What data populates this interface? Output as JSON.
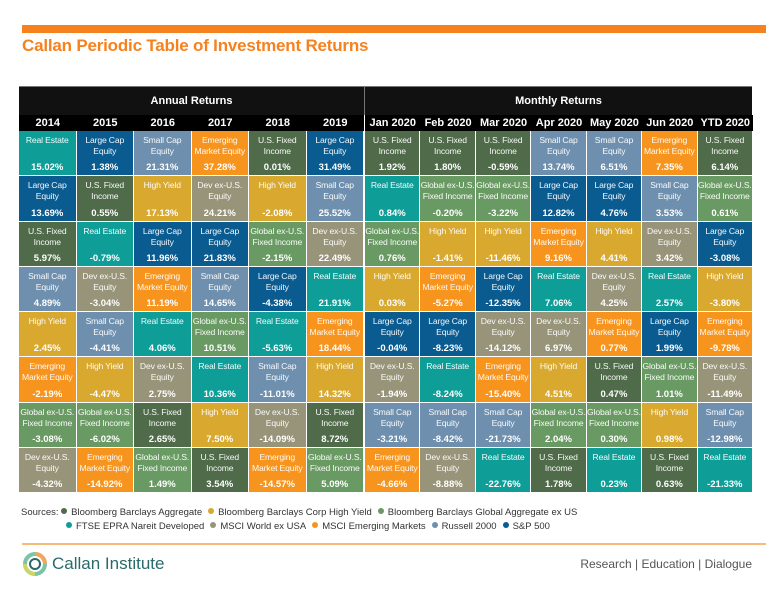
{
  "title": "Callan Periodic Table of Investment Returns",
  "groups": {
    "annual": "Annual Returns",
    "monthly": "Monthly Returns"
  },
  "assets": {
    "USF": {
      "label": "U.S. Fixed\nIncome",
      "color": "#4f6b49"
    },
    "HY": {
      "label": "High Yield",
      "color": "#d9a82f"
    },
    "GF": {
      "label": "Global ex-U.S.\nFixed Income",
      "color": "#6a9a63"
    },
    "RE": {
      "label": "Real Estate",
      "color": "#0f9d98"
    },
    "DEV": {
      "label": "Dev ex-U.S.\nEquity",
      "color": "#979479"
    },
    "EM": {
      "label": "Emerging\nMarket Equity",
      "color": "#f7941e"
    },
    "SC": {
      "label": "Small Cap\nEquity",
      "color": "#6f8fae"
    },
    "LC": {
      "label": "Large Cap\nEquity",
      "color": "#0a5b90"
    }
  },
  "columns": [
    {
      "header": "2014",
      "cells": [
        [
          "RE",
          "15.02%"
        ],
        [
          "LC",
          "13.69%"
        ],
        [
          "USF",
          "5.97%"
        ],
        [
          "SC",
          "4.89%"
        ],
        [
          "HY",
          "2.45%"
        ],
        [
          "EM",
          "-2.19%"
        ],
        [
          "GF",
          "-3.08%"
        ],
        [
          "DEV",
          "-4.32%"
        ]
      ]
    },
    {
      "header": "2015",
      "cells": [
        [
          "LC",
          "1.38%"
        ],
        [
          "USF",
          "0.55%"
        ],
        [
          "RE",
          "-0.79%"
        ],
        [
          "DEV",
          "-3.04%"
        ],
        [
          "SC",
          "-4.41%"
        ],
        [
          "HY",
          "-4.47%"
        ],
        [
          "GF",
          "-6.02%"
        ],
        [
          "EM",
          "-14.92%"
        ]
      ]
    },
    {
      "header": "2016",
      "cells": [
        [
          "SC",
          "21.31%"
        ],
        [
          "HY",
          "17.13%"
        ],
        [
          "LC",
          "11.96%"
        ],
        [
          "EM",
          "11.19%"
        ],
        [
          "RE",
          "4.06%"
        ],
        [
          "DEV",
          "2.75%"
        ],
        [
          "USF",
          "2.65%"
        ],
        [
          "GF",
          "1.49%"
        ]
      ]
    },
    {
      "header": "2017",
      "cells": [
        [
          "EM",
          "37.28%"
        ],
        [
          "DEV",
          "24.21%"
        ],
        [
          "LC",
          "21.83%"
        ],
        [
          "SC",
          "14.65%"
        ],
        [
          "GF",
          "10.51%"
        ],
        [
          "RE",
          "10.36%"
        ],
        [
          "HY",
          "7.50%"
        ],
        [
          "USF",
          "3.54%"
        ]
      ]
    },
    {
      "header": "2018",
      "cells": [
        [
          "USF",
          "0.01%"
        ],
        [
          "HY",
          "-2.08%"
        ],
        [
          "GF",
          "-2.15%"
        ],
        [
          "LC",
          "-4.38%"
        ],
        [
          "RE",
          "-5.63%"
        ],
        [
          "SC",
          "-11.01%"
        ],
        [
          "DEV",
          "-14.09%"
        ],
        [
          "EM",
          "-14.57%"
        ]
      ]
    },
    {
      "header": "2019",
      "cells": [
        [
          "LC",
          "31.49%"
        ],
        [
          "SC",
          "25.52%"
        ],
        [
          "DEV",
          "22.49%"
        ],
        [
          "RE",
          "21.91%"
        ],
        [
          "EM",
          "18.44%"
        ],
        [
          "HY",
          "14.32%"
        ],
        [
          "USF",
          "8.72%"
        ],
        [
          "GF",
          "5.09%"
        ]
      ]
    },
    {
      "header": "Jan 2020",
      "cells": [
        [
          "USF",
          "1.92%"
        ],
        [
          "RE",
          "0.84%"
        ],
        [
          "GF",
          "0.76%"
        ],
        [
          "HY",
          "0.03%"
        ],
        [
          "LC",
          "-0.04%"
        ],
        [
          "DEV",
          "-1.94%"
        ],
        [
          "SC",
          "-3.21%"
        ],
        [
          "EM",
          "-4.66%"
        ]
      ]
    },
    {
      "header": "Feb 2020",
      "cells": [
        [
          "USF",
          "1.80%"
        ],
        [
          "GF",
          "-0.20%"
        ],
        [
          "HY",
          "-1.41%"
        ],
        [
          "EM",
          "-5.27%"
        ],
        [
          "LC",
          "-8.23%"
        ],
        [
          "RE",
          "-8.24%"
        ],
        [
          "SC",
          "-8.42%"
        ],
        [
          "DEV",
          "-8.88%"
        ]
      ]
    },
    {
      "header": "Mar 2020",
      "cells": [
        [
          "USF",
          "-0.59%"
        ],
        [
          "GF",
          "-3.22%"
        ],
        [
          "HY",
          "-11.46%"
        ],
        [
          "LC",
          "-12.35%"
        ],
        [
          "DEV",
          "-14.12%"
        ],
        [
          "EM",
          "-15.40%"
        ],
        [
          "SC",
          "-21.73%"
        ],
        [
          "RE",
          "-22.76%"
        ]
      ]
    },
    {
      "header": "Apr 2020",
      "cells": [
        [
          "SC",
          "13.74%"
        ],
        [
          "LC",
          "12.82%"
        ],
        [
          "EM",
          "9.16%"
        ],
        [
          "RE",
          "7.06%"
        ],
        [
          "DEV",
          "6.97%"
        ],
        [
          "HY",
          "4.51%"
        ],
        [
          "GF",
          "2.04%"
        ],
        [
          "USF",
          "1.78%"
        ]
      ]
    },
    {
      "header": "May 2020",
      "cells": [
        [
          "SC",
          "6.51%"
        ],
        [
          "LC",
          "4.76%"
        ],
        [
          "HY",
          "4.41%"
        ],
        [
          "DEV",
          "4.25%"
        ],
        [
          "EM",
          "0.77%"
        ],
        [
          "USF",
          "0.47%"
        ],
        [
          "GF",
          "0.30%"
        ],
        [
          "RE",
          "0.23%"
        ]
      ]
    },
    {
      "header": "Jun 2020",
      "cells": [
        [
          "EM",
          "7.35%"
        ],
        [
          "SC",
          "3.53%"
        ],
        [
          "DEV",
          "3.42%"
        ],
        [
          "RE",
          "2.57%"
        ],
        [
          "LC",
          "1.99%"
        ],
        [
          "GF",
          "1.01%"
        ],
        [
          "HY",
          "0.98%"
        ],
        [
          "USF",
          "0.63%"
        ]
      ]
    },
    {
      "header": "YTD 2020",
      "cells": [
        [
          "USF",
          "6.14%"
        ],
        [
          "GF",
          "0.61%"
        ],
        [
          "LC",
          "-3.08%"
        ],
        [
          "HY",
          "-3.80%"
        ],
        [
          "EM",
          "-9.78%"
        ],
        [
          "DEV",
          "-11.49%"
        ],
        [
          "SC",
          "-12.98%"
        ],
        [
          "RE",
          "-21.33%"
        ]
      ]
    }
  ],
  "sources": {
    "label": "Sources:",
    "items": [
      {
        "text": "Bloomberg Barclays Aggregate",
        "color": "#4f6b49"
      },
      {
        "text": "Bloomberg Barclays Corp High Yield",
        "color": "#d9a82f"
      },
      {
        "text": "Bloomberg Barclays Global Aggregate ex US",
        "color": "#6a9a63"
      },
      {
        "text": "FTSE EPRA Nareit Developed",
        "color": "#0f9d98"
      },
      {
        "text": "MSCI World ex USA",
        "color": "#979479"
      },
      {
        "text": "MSCI Emerging Markets",
        "color": "#f7941e"
      },
      {
        "text": "Russell 2000",
        "color": "#6f8fae"
      },
      {
        "text": "S&P 500",
        "color": "#0a5b90"
      }
    ]
  },
  "footer": {
    "logo": "Callan Institute",
    "tagline": "Research | Education | Dialogue"
  }
}
